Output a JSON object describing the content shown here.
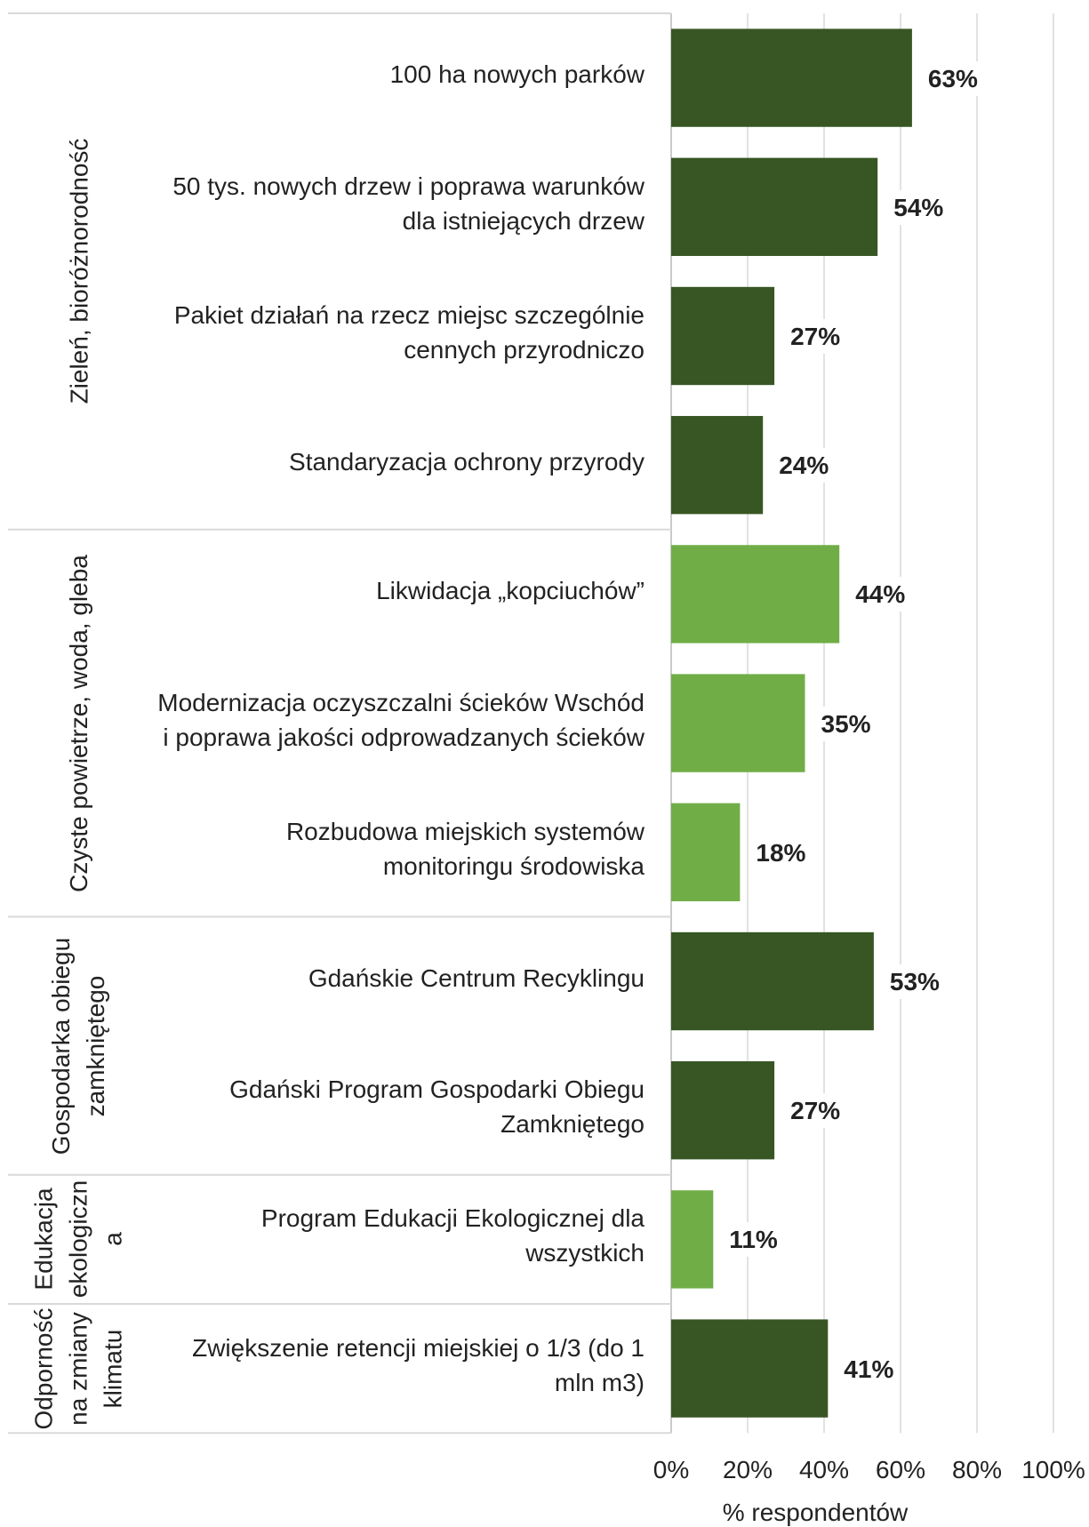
{
  "chart_data": {
    "type": "bar",
    "orientation": "horizontal",
    "groups": [
      {
        "name": "Zieleń, bioróżnorodność",
        "color": "#375623",
        "categories": [
          "100 ha nowych parków",
          "50 tys. nowych drzew i poprawa warunków\ndla istniejących drzew",
          "Pakiet działań na rzecz miejsc szczególnie\ncennych przyrodniczo",
          "Standaryzacja ochrony przyrody"
        ],
        "values": [
          63,
          54,
          27,
          24
        ],
        "value_labels": [
          "63%",
          "54%",
          "27%",
          "24%"
        ]
      },
      {
        "name": "Czyste powietrze, woda, gleba",
        "color": "#70ad47",
        "categories": [
          "Likwidacja „kopciuchów”",
          "Modernizacja oczyszczalni ścieków Wschód\ni poprawa jakości odprowadzanych ścieków",
          "Rozbudowa miejskich systemów\nmonitoringu środowiska"
        ],
        "values": [
          44,
          35,
          18
        ],
        "value_labels": [
          "44%",
          "35%",
          "18%"
        ]
      },
      {
        "name": "Gospodarka obiegu\nzamkniętego",
        "color": "#375623",
        "categories": [
          "Gdańskie Centrum Recyklingu",
          "Gdański Program Gospodarki Obiegu\nZamkniętego"
        ],
        "values": [
          53,
          27
        ],
        "value_labels": [
          "53%",
          "27%"
        ]
      },
      {
        "name": "Edukacja\nekologiczn\na",
        "color": "#70ad47",
        "categories": [
          "Program Edukacji Ekologicznej dla\nwszystkich"
        ],
        "values": [
          11
        ],
        "value_labels": [
          "11%"
        ]
      },
      {
        "name": "Odporność\nna zmiany\nklimatu",
        "color": "#375623",
        "categories": [
          "Zwiększenie retencji miejskiej o 1/3 (do 1\nmln m3)"
        ],
        "values": [
          41
        ],
        "value_labels": [
          "41%"
        ]
      }
    ],
    "x_label": "% respondentów",
    "xlim": [
      0,
      100
    ],
    "xticks": [
      {
        "value": 0,
        "label": "0%"
      },
      {
        "value": 20,
        "label": "20%"
      },
      {
        "value": 40,
        "label": "40%"
      },
      {
        "value": 60,
        "label": "60%"
      },
      {
        "value": 80,
        "label": "80%"
      },
      {
        "value": 100,
        "label": "100%"
      }
    ],
    "grid": true
  }
}
